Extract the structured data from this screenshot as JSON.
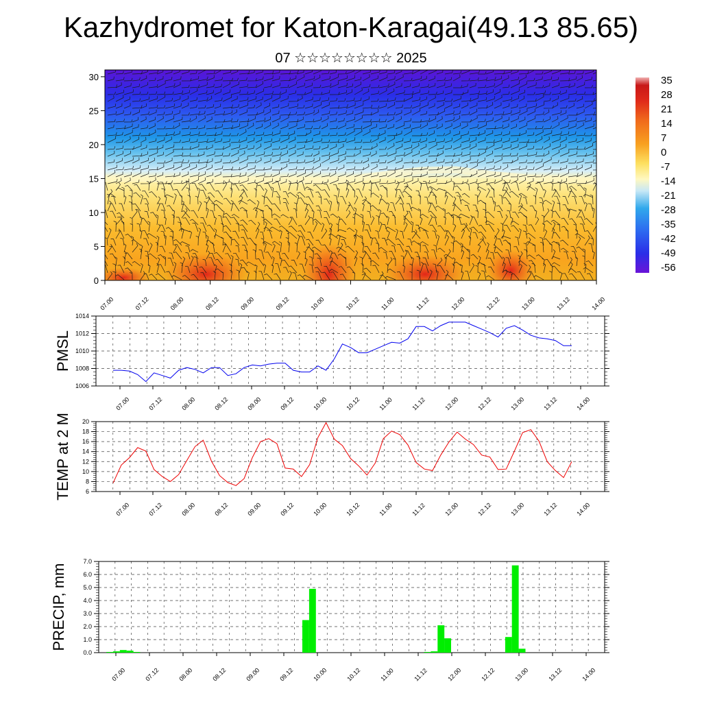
{
  "header": {
    "title": "Kazhydromet for Katon-Karagai(49.13 85.65)",
    "subtitle": "07 ☆☆☆☆☆☆☆☆ 2025"
  },
  "chart_data": [
    {
      "type": "heatmap",
      "name": "temperature-cross-section",
      "x_tick_labels": [
        "07.00",
        "07.12",
        "08.00",
        "08.12",
        "09.00",
        "09.12",
        "10.00",
        "10.12",
        "11.00",
        "11.12",
        "12.00",
        "12.12",
        "13.00",
        "13.12",
        "14.00"
      ],
      "y_tick_labels": [
        "0",
        "5",
        "10",
        "15",
        "20",
        "25",
        "30"
      ],
      "ylim": [
        0,
        31
      ],
      "colorbar_labels": [
        "35",
        "28",
        "21",
        "14",
        "7",
        "0",
        "-7",
        "-14",
        "-21",
        "-28",
        "-35",
        "-42",
        "-49",
        "-56"
      ],
      "colorbar_range": [
        -63,
        38
      ],
      "colors": {
        "hot": "#e0201a",
        "warm": "#f5a020",
        "mild": "#fff2a0",
        "cool": "#9ed8f0",
        "cold": "#2a3cf0",
        "coldest": "#5a10d0"
      },
      "freezing_level_km": [
        15.0,
        15.0,
        14.9,
        14.8,
        14.8,
        14.9,
        14.7,
        14.9,
        15.6,
        16.2,
        16.3,
        15.6,
        15.1,
        14.9,
        14.6
      ],
      "overlay": "wind barbs"
    },
    {
      "type": "line",
      "name": "PMSL",
      "ylabel": "PMSL",
      "ylim": [
        1006,
        1014
      ],
      "y_tick_labels": [
        "1006",
        "1008",
        "1010",
        "1012",
        "1014"
      ],
      "x_tick_labels": [
        "07.00",
        "07.12",
        "08.00",
        "08.12",
        "09.00",
        "09.12",
        "10.00",
        "10.12",
        "11.00",
        "11.12",
        "12.00",
        "12.12",
        "13.00",
        "13.12",
        "14.00"
      ],
      "color": "#0000ee",
      "values": [
        1007.8,
        1007.8,
        1007.7,
        1007.3,
        1006.5,
        1007.5,
        1007.2,
        1006.9,
        1007.8,
        1008.1,
        1007.9,
        1007.5,
        1008.1,
        1008.1,
        1007.2,
        1007.4,
        1008.1,
        1008.4,
        1008.3,
        1008.5,
        1008.6,
        1008.6,
        1007.8,
        1007.6,
        1007.6,
        1008.3,
        1007.8,
        1009.1,
        1010.8,
        1010.4,
        1009.8,
        1009.8,
        1010.2,
        1010.6,
        1011.0,
        1010.9,
        1011.4,
        1012.8,
        1012.8,
        1012.3,
        1012.9,
        1013.3,
        1013.3,
        1013.3,
        1012.9,
        1012.5,
        1012.1,
        1011.6,
        1012.6,
        1012.9,
        1012.4,
        1011.8,
        1011.5,
        1011.4,
        1011.2,
        1010.6,
        1010.6
      ]
    },
    {
      "type": "line",
      "name": "TEMP at 2 M",
      "ylabel": "TEMP at 2 M",
      "ylim": [
        6,
        20
      ],
      "y_tick_labels": [
        "6",
        "8",
        "10",
        "12",
        "14",
        "16",
        "18",
        "20"
      ],
      "x_tick_labels": [
        "07.00",
        "07.12",
        "08.00",
        "08.12",
        "09.00",
        "09.12",
        "10.00",
        "10.12",
        "11.00",
        "11.12",
        "12.00",
        "12.12",
        "13.00",
        "13.12",
        "14.00"
      ],
      "color": "#ee0000",
      "values": [
        7.7,
        11.3,
        12.8,
        14.8,
        14.1,
        10.4,
        9.0,
        8.0,
        9.4,
        12.2,
        15.0,
        16.3,
        12.1,
        9.2,
        7.8,
        7.2,
        8.6,
        12.8,
        16.0,
        16.6,
        15.6,
        10.7,
        10.5,
        9.0,
        11.4,
        16.8,
        19.8,
        16.5,
        15.2,
        12.6,
        11.1,
        9.3,
        11.7,
        16.6,
        18.1,
        17.4,
        15.3,
        11.8,
        10.5,
        10.2,
        13.3,
        15.9,
        17.9,
        16.5,
        15.4,
        13.3,
        12.9,
        10.4,
        10.5,
        14.1,
        17.8,
        18.4,
        16.1,
        12.0,
        10.2,
        8.8,
        12.0
      ]
    },
    {
      "type": "bar",
      "name": "PRECIP, mm",
      "ylabel": "PRECIP, mm",
      "ylim": [
        0,
        7
      ],
      "y_tick_labels": [
        "0.0",
        "1.0",
        "2.0",
        "3.0",
        "4.0",
        "5.0",
        "6.0",
        "7.0"
      ],
      "x_tick_labels": [
        "07.00",
        "07.12",
        "08.00",
        "08.12",
        "09.00",
        "09.12",
        "10.00",
        "10.12",
        "11.00",
        "11.12",
        "12.00",
        "12.12",
        "13.00",
        "13.12",
        "14.00"
      ],
      "color": "#00ee00",
      "values": [
        0.05,
        0.1,
        0.2,
        0.15,
        0.05,
        0,
        0,
        0,
        0,
        0,
        0,
        0,
        0,
        0,
        0,
        0,
        0,
        0,
        0,
        0,
        0,
        0,
        0,
        0,
        0,
        0,
        0,
        0,
        0,
        2.5,
        4.9,
        0,
        0,
        0,
        0,
        0,
        0,
        0,
        0,
        0,
        0,
        0,
        0,
        0,
        0,
        0,
        0,
        0.05,
        0.1,
        2.1,
        1.1,
        0,
        0,
        0,
        0,
        0,
        0,
        0,
        0,
        1.2,
        6.7,
        0.3,
        0,
        0,
        0,
        0,
        0,
        0,
        0,
        0,
        0,
        0,
        0
      ]
    }
  ]
}
